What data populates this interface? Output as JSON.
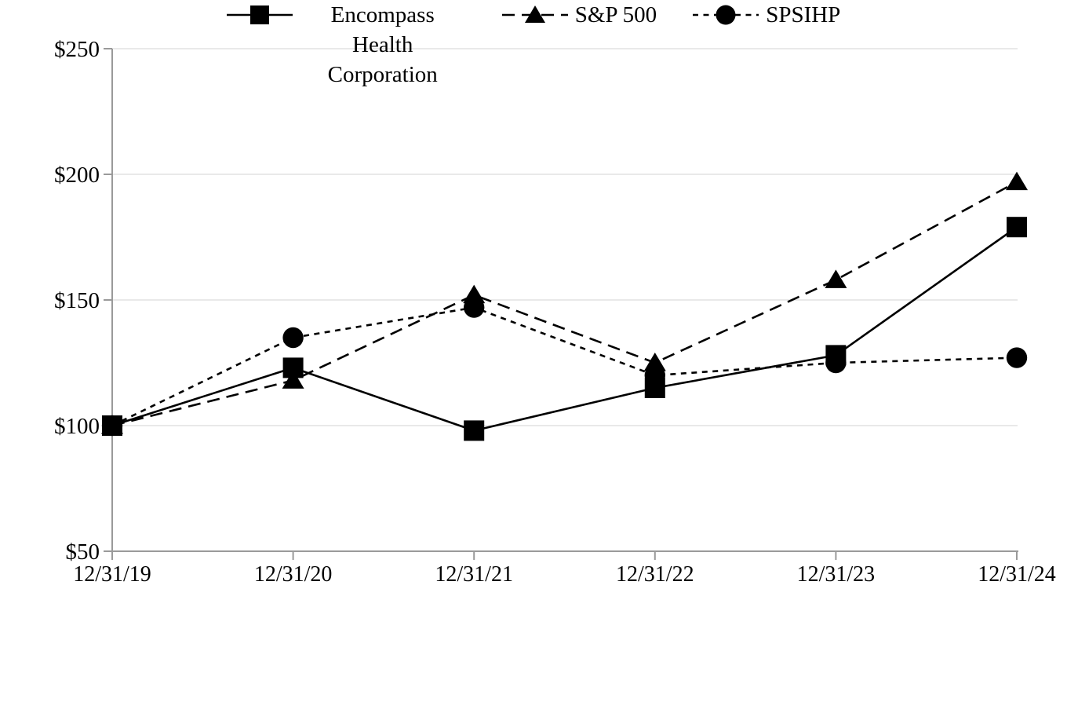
{
  "chart_data": {
    "type": "line",
    "title": "",
    "categories": [
      "12/31/19",
      "12/31/20",
      "12/31/21",
      "12/31/22",
      "12/31/23",
      "12/31/24"
    ],
    "series": [
      {
        "name": "Encompass Health Corporation",
        "marker": "square",
        "line_style": "solid",
        "values": [
          100,
          123,
          98,
          115,
          128,
          179
        ]
      },
      {
        "name": "S&P 500",
        "marker": "triangle",
        "line_style": "long-dash",
        "values": [
          100,
          118,
          152,
          125,
          158,
          197
        ]
      },
      {
        "name": "SPSIHP",
        "marker": "circle",
        "line_style": "short-dash",
        "values": [
          100,
          135,
          147,
          120,
          125,
          127
        ]
      }
    ],
    "x_axis": {
      "tick_labels": [
        "12/31/19",
        "12/31/20",
        "12/31/21",
        "12/31/22",
        "12/31/23",
        "12/31/24"
      ]
    },
    "y_axis": {
      "min": 50,
      "max": 250,
      "step": 50,
      "tick_labels": [
        "$50",
        "$100",
        "$150",
        "$200",
        "$250"
      ],
      "prefix": "$"
    },
    "ylim": [
      50,
      250
    ],
    "legend_position": "bottom",
    "grid": "horizontal-only",
    "colors": {
      "series_color": "#000000",
      "axis_color": "#9a9a9a",
      "gridline_color": "#e2e2e2",
      "text_color": "#000000",
      "background": "#ffffff"
    }
  }
}
